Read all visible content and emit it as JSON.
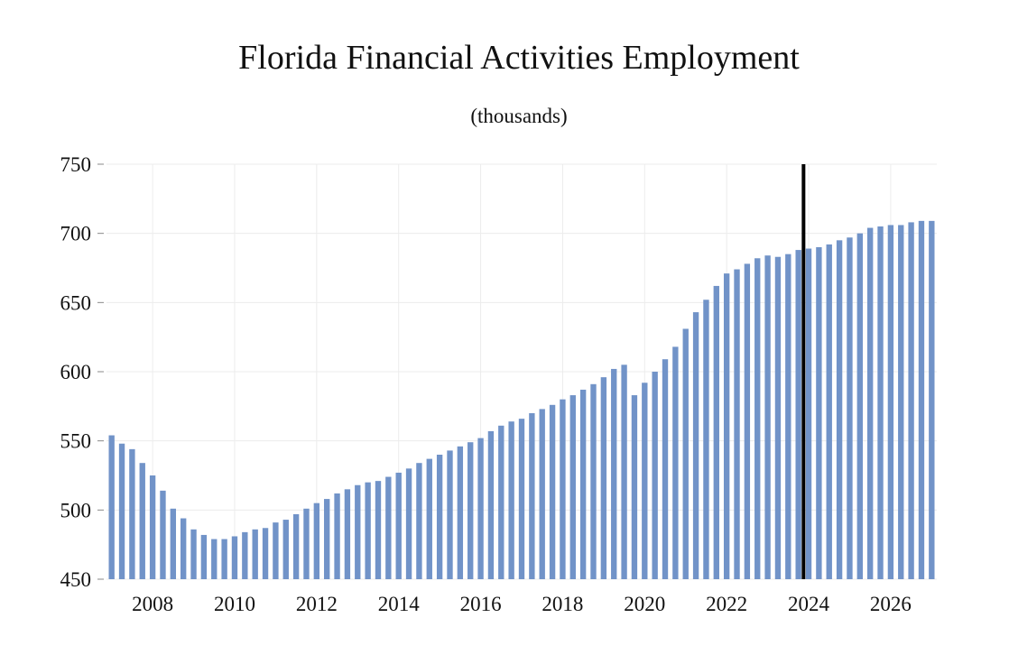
{
  "chart_data": {
    "type": "bar",
    "title": "Florida Financial Activities Employment",
    "subtitle": "(thousands)",
    "xlabel": "",
    "ylabel": "",
    "ylim": [
      450,
      750
    ],
    "yticks": [
      450,
      500,
      550,
      600,
      650,
      700,
      750
    ],
    "xticks": [
      "2008",
      "2010",
      "2012",
      "2014",
      "2016",
      "2018",
      "2020",
      "2022",
      "2024",
      "2026"
    ],
    "grid": true,
    "bar_color": "#7193c8",
    "marker_color": "#000000",
    "marker_position": "between 2023 Q4 and 2024 Q1",
    "periods": [
      "2007 Q1",
      "2007 Q2",
      "2007 Q3",
      "2007 Q4",
      "2008 Q1",
      "2008 Q2",
      "2008 Q3",
      "2008 Q4",
      "2009 Q1",
      "2009 Q2",
      "2009 Q3",
      "2009 Q4",
      "2010 Q1",
      "2010 Q2",
      "2010 Q3",
      "2010 Q4",
      "2011 Q1",
      "2011 Q2",
      "2011 Q3",
      "2011 Q4",
      "2012 Q1",
      "2012 Q2",
      "2012 Q3",
      "2012 Q4",
      "2013 Q1",
      "2013 Q2",
      "2013 Q3",
      "2013 Q4",
      "2014 Q1",
      "2014 Q2",
      "2014 Q3",
      "2014 Q4",
      "2015 Q1",
      "2015 Q2",
      "2015 Q3",
      "2015 Q4",
      "2016 Q1",
      "2016 Q2",
      "2016 Q3",
      "2016 Q4",
      "2017 Q1",
      "2017 Q2",
      "2017 Q3",
      "2017 Q4",
      "2018 Q1",
      "2018 Q2",
      "2018 Q3",
      "2018 Q4",
      "2019 Q1",
      "2019 Q2",
      "2019 Q3",
      "2019 Q4",
      "2020 Q1",
      "2020 Q2",
      "2020 Q3",
      "2020 Q4",
      "2021 Q1",
      "2021 Q2",
      "2021 Q3",
      "2021 Q4",
      "2022 Q1",
      "2022 Q2",
      "2022 Q3",
      "2022 Q4",
      "2023 Q1",
      "2023 Q2",
      "2023 Q3",
      "2023 Q4",
      "2024 Q1",
      "2024 Q2",
      "2024 Q3",
      "2024 Q4",
      "2025 Q1",
      "2025 Q2",
      "2025 Q3",
      "2025 Q4",
      "2026 Q1",
      "2026 Q2",
      "2026 Q3",
      "2026 Q4",
      "2027 Q1"
    ],
    "values": [
      554,
      548,
      544,
      534,
      525,
      514,
      501,
      494,
      486,
      482,
      479,
      479,
      481,
      484,
      486,
      487,
      491,
      493,
      497,
      501,
      505,
      508,
      512,
      515,
      518,
      520,
      521,
      524,
      527,
      530,
      534,
      537,
      540,
      543,
      546,
      549,
      552,
      557,
      561,
      564,
      566,
      570,
      573,
      576,
      580,
      583,
      587,
      591,
      596,
      602,
      605,
      583,
      592,
      600,
      609,
      618,
      631,
      643,
      652,
      662,
      671,
      674,
      678,
      682,
      684,
      683,
      685,
      688,
      689,
      690,
      692,
      695,
      697,
      700,
      704,
      705,
      706,
      706,
      708,
      709,
      709
    ]
  }
}
